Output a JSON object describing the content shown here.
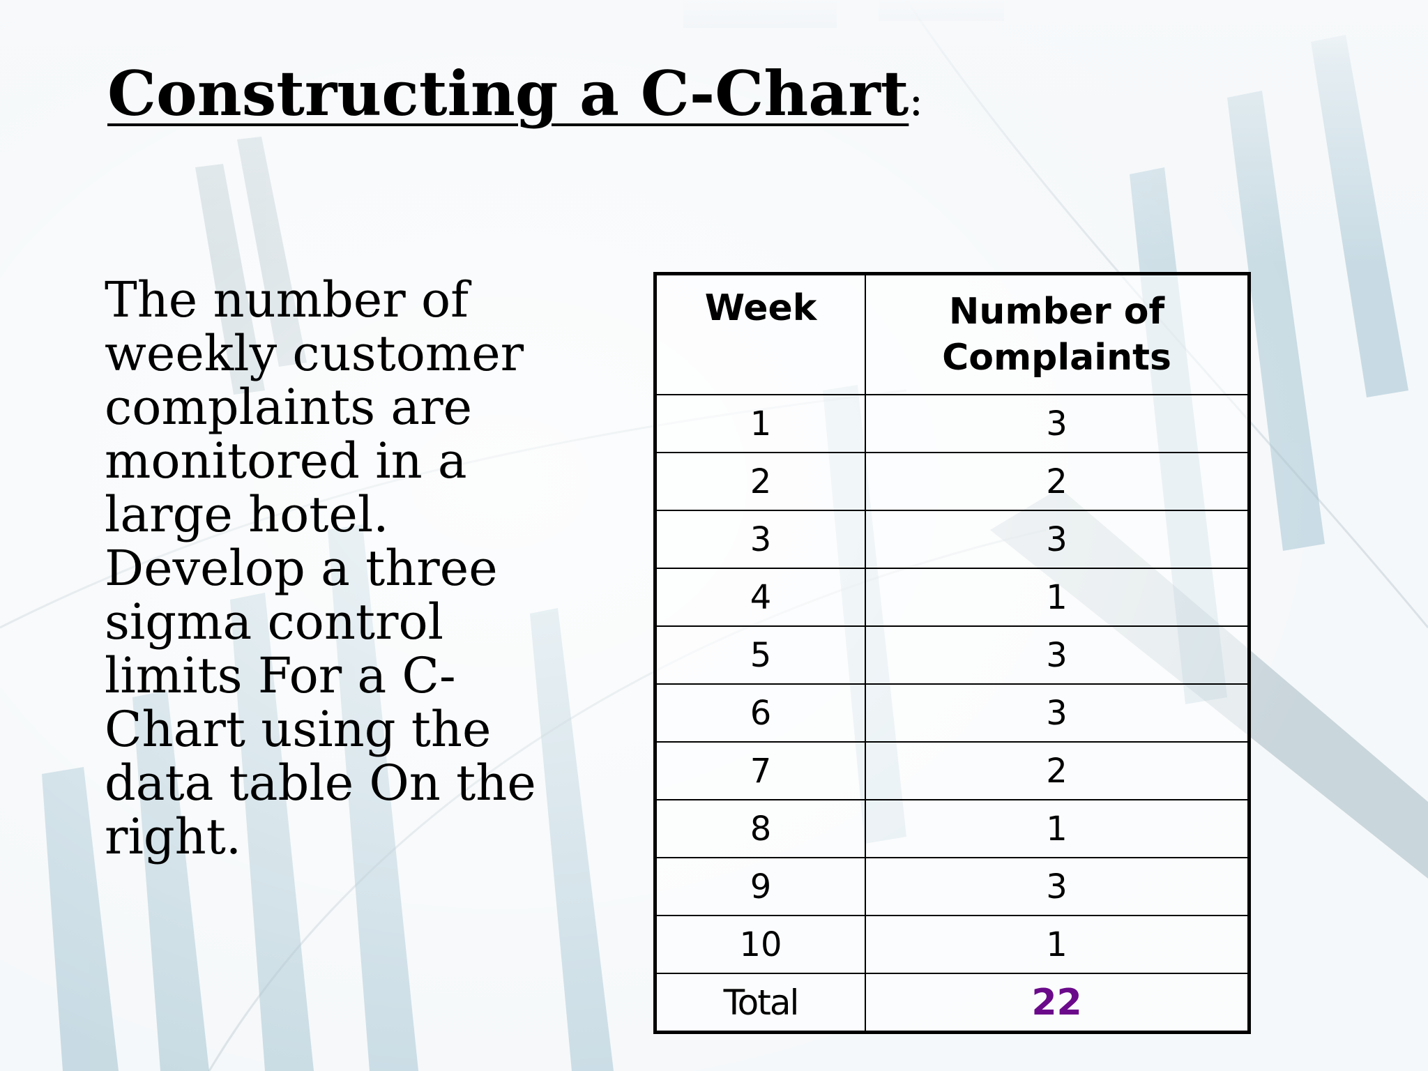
{
  "slide": {
    "title": "Constructing a C-Chart",
    "title_suffix": ":",
    "body": "The number of weekly customer complaints are monitored in a large hotel. Develop a three sigma control limits For a C-Chart using the data table On the right."
  },
  "table": {
    "headers": {
      "week": "Week",
      "complaints": "Number of Complaints"
    },
    "rows": [
      {
        "week": "1",
        "complaints": "3"
      },
      {
        "week": "2",
        "complaints": "2"
      },
      {
        "week": "3",
        "complaints": "3"
      },
      {
        "week": "4",
        "complaints": "1"
      },
      {
        "week": "5",
        "complaints": "3"
      },
      {
        "week": "6",
        "complaints": "3"
      },
      {
        "week": "7",
        "complaints": "2"
      },
      {
        "week": "8",
        "complaints": "1"
      },
      {
        "week": "9",
        "complaints": "3"
      },
      {
        "week": "10",
        "complaints": "1"
      }
    ],
    "total": {
      "label": "Total",
      "value": "22"
    }
  },
  "colors": {
    "total_value": "#6a0a8a",
    "background_accent": "#4f8fa8"
  }
}
